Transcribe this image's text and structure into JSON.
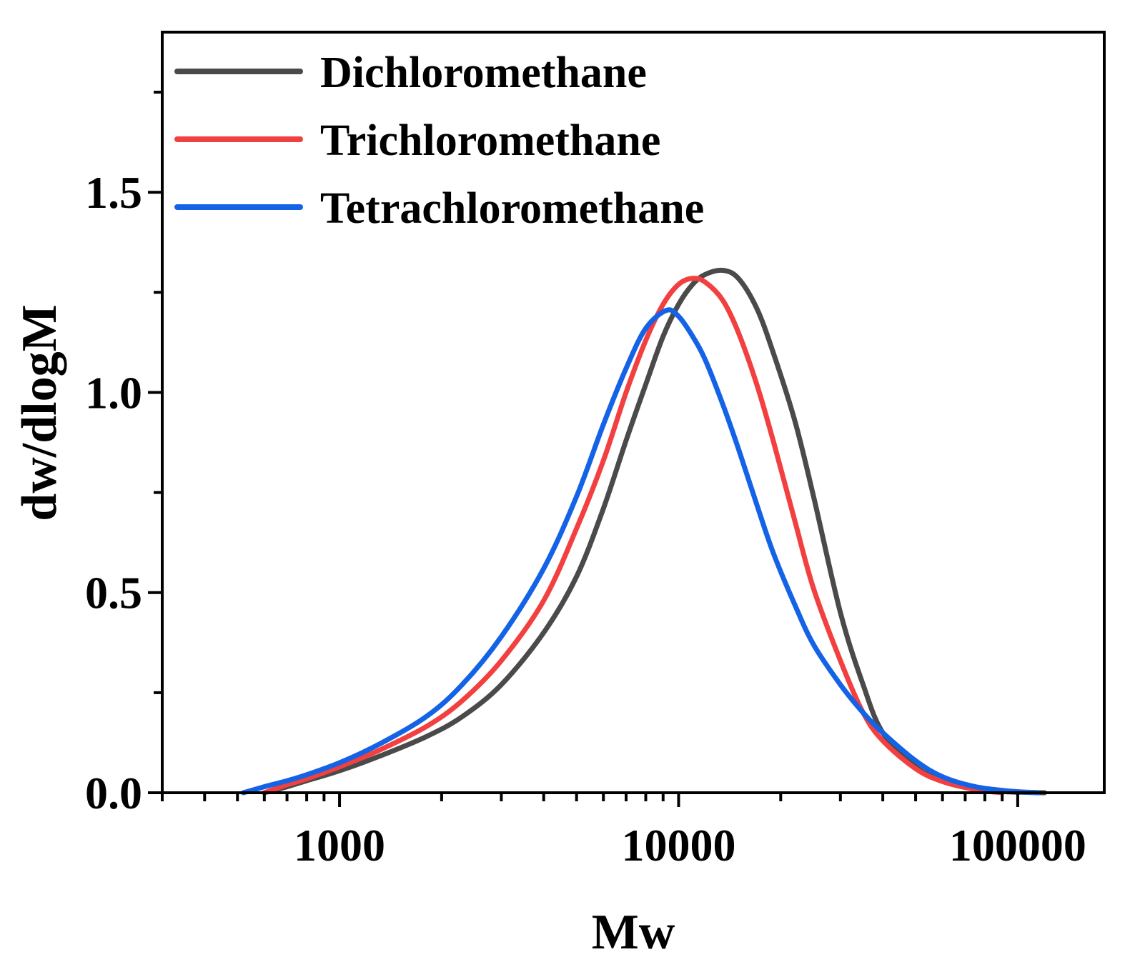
{
  "chart_data": {
    "type": "line",
    "xscale": "log",
    "xlabel": "Mw",
    "ylabel": "dw/dlogM",
    "xlim": [
      300,
      180000
    ],
    "ylim": [
      0,
      1.9
    ],
    "xticks": [
      1000,
      10000,
      100000
    ],
    "xtick_labels": [
      "1000",
      "10000",
      "100000"
    ],
    "yticks": [
      0,
      0.5,
      1.0,
      1.5
    ],
    "ytick_labels": [
      "0.0",
      "0.5",
      "1.0",
      "1.5"
    ],
    "legend_position": "top-left",
    "grid": false,
    "series": [
      {
        "name": "Dichloromethane",
        "color": "#4a4a4a",
        "x": [
          600,
          700,
          800,
          1000,
          1300,
          1800,
          2300,
          3000,
          4000,
          5000,
          6000,
          7000,
          8000,
          9000,
          10000,
          11000,
          12000,
          13500,
          15000,
          17000,
          19000,
          22000,
          25000,
          30000,
          35000,
          40000,
          50000,
          60000,
          75000,
          90000,
          120000
        ],
        "y": [
          0.0,
          0.015,
          0.03,
          0.055,
          0.09,
          0.14,
          0.19,
          0.27,
          0.4,
          0.54,
          0.71,
          0.88,
          1.02,
          1.14,
          1.22,
          1.27,
          1.295,
          1.305,
          1.285,
          1.21,
          1.1,
          0.93,
          0.74,
          0.45,
          0.27,
          0.15,
          0.065,
          0.03,
          0.01,
          0.003,
          0.0
        ]
      },
      {
        "name": "Trichloromethane",
        "color": "#f24040",
        "x": [
          600,
          700,
          800,
          1000,
          1300,
          1800,
          2300,
          3000,
          4000,
          5000,
          6000,
          7000,
          8000,
          9000,
          10000,
          11000,
          12000,
          13500,
          15000,
          17000,
          19000,
          22000,
          25000,
          30000,
          35000,
          40000,
          50000,
          60000,
          75000,
          90000
        ],
        "y": [
          0.0,
          0.02,
          0.035,
          0.065,
          0.105,
          0.165,
          0.23,
          0.33,
          0.48,
          0.66,
          0.83,
          1.0,
          1.13,
          1.22,
          1.27,
          1.285,
          1.275,
          1.23,
          1.15,
          1.02,
          0.88,
          0.68,
          0.51,
          0.33,
          0.2,
          0.13,
          0.06,
          0.028,
          0.008,
          0.0
        ]
      },
      {
        "name": "Tetrachloromethane",
        "color": "#1463e6",
        "x": [
          520,
          600,
          700,
          800,
          1000,
          1300,
          1800,
          2300,
          3000,
          4000,
          5000,
          6000,
          7000,
          8000,
          9200,
          10000,
          11000,
          12000,
          13500,
          15000,
          17000,
          19000,
          22000,
          25000,
          30000,
          35000,
          40000,
          50000,
          60000,
          75000,
          95000,
          115000
        ],
        "y": [
          0.0,
          0.015,
          0.03,
          0.045,
          0.075,
          0.12,
          0.19,
          0.27,
          0.39,
          0.56,
          0.74,
          0.92,
          1.06,
          1.16,
          1.205,
          1.19,
          1.14,
          1.08,
          0.97,
          0.86,
          0.72,
          0.6,
          0.47,
          0.37,
          0.27,
          0.2,
          0.15,
          0.08,
          0.04,
          0.015,
          0.004,
          0.0
        ]
      }
    ]
  }
}
